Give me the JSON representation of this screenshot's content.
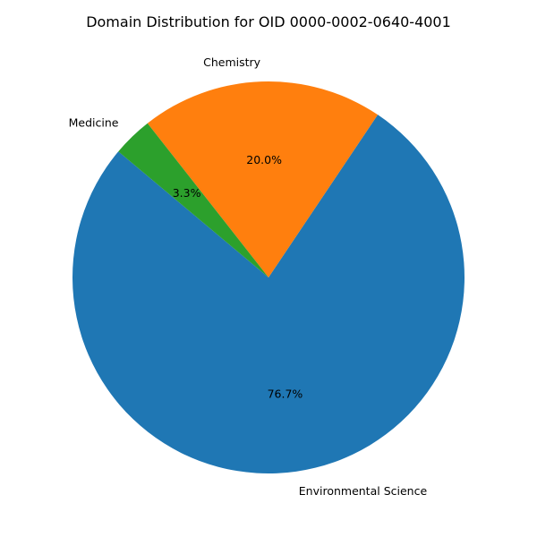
{
  "chart_data": {
    "type": "pie",
    "title": "Domain Distribution for OID 0000-0002-0640-4001",
    "slices": [
      {
        "label": "Environmental Science",
        "value": 76.7,
        "pct_label": "76.7%",
        "color": "#1f77b4"
      },
      {
        "label": "Chemistry",
        "value": 20.0,
        "pct_label": "20.0%",
        "color": "#ff7f0e"
      },
      {
        "label": "Medicine",
        "value": 3.3,
        "pct_label": "3.3%",
        "color": "#2ca02c"
      }
    ],
    "start_angle_deg": 140,
    "direction": "counterclockwise",
    "legend": "none"
  }
}
